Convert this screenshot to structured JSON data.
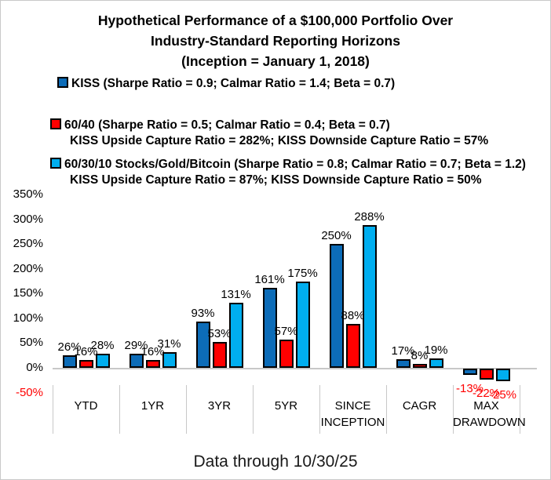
{
  "title": {
    "lines": [
      "Hypothetical Performance of a $100,000 Portfolio Over",
      "Industry-Standard Reporting Horizons",
      "(Inception = January 1, 2018)"
    ]
  },
  "legend": [
    {
      "swatch_color": "#0C6CB8",
      "label": "KISS (Sharpe Ratio = 0.9; Calmar Ratio = 1.4; Beta = 0.7)",
      "sublabel": ""
    },
    {
      "swatch_color": "#FF0000",
      "label": "60/40 (Sharpe Ratio = 0.5; Calmar Ratio = 0.4; Beta = 0.7)",
      "sublabel": "KISS Upside Capture Ratio = 282%; KISS Downside Capture Ratio = 57%"
    },
    {
      "swatch_color": "#00AEEF",
      "label": "60/30/10 Stocks/Gold/Bitcoin (Sharpe Ratio = 0.8; Calmar Ratio = 0.7; Beta = 1.2)",
      "sublabel": "KISS Upside Capture Ratio = 87%; KISS Downside Capture Ratio = 50%"
    }
  ],
  "chart_data": {
    "type": "bar",
    "title": "Hypothetical Performance of a $100,000 Portfolio Over Industry-Standard Reporting Horizons (Inception = January 1, 2018)",
    "categories": [
      "YTD",
      "1YR",
      "3YR",
      "5YR",
      "SINCE INCEPTION",
      "CAGR",
      "MAX DRAWDOWN"
    ],
    "category_label_lines": [
      [
        "YTD"
      ],
      [
        "1YR"
      ],
      [
        "3YR"
      ],
      [
        "5YR"
      ],
      [
        "SINCE",
        "INCEPTION"
      ],
      [
        "CAGR"
      ],
      [
        "MAX",
        "DRAWDOWN"
      ]
    ],
    "series": [
      {
        "name": "KISS",
        "color": "#0C6CB8",
        "values": [
          26,
          29,
          93,
          161,
          250,
          17,
          -13
        ]
      },
      {
        "name": "60/40",
        "color": "#FF0000",
        "values": [
          16,
          16,
          53,
          57,
          88,
          8,
          -22
        ]
      },
      {
        "name": "60/30/10 Stocks/Gold/Bitcoin",
        "color": "#00AEEF",
        "values": [
          28,
          31,
          131,
          175,
          288,
          19,
          -25
        ]
      }
    ],
    "value_label_suffix": "%",
    "ylim": [
      -50,
      350
    ],
    "yticks": [
      350,
      300,
      250,
      200,
      150,
      100,
      50,
      0,
      -50
    ],
    "ytick_labels": [
      "350%",
      "300%",
      "250%",
      "200%",
      "150%",
      "100%",
      "50%",
      "0%",
      "-50%"
    ],
    "negative_label_color": "#FF0000",
    "axis_line_color": "#C8C8C8",
    "bar_border_color": "#000000",
    "grid": "none",
    "legend_position": "top-left"
  },
  "footer": {
    "text": "Data through 10/30/25"
  }
}
